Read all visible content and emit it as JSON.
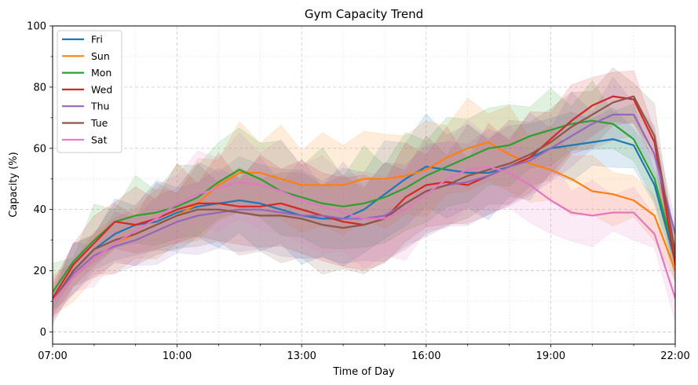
{
  "chart_data": {
    "type": "line",
    "title": "Gym Capacity Trend",
    "xlabel": "Time of Day",
    "ylabel": "Capacity (%)",
    "xlim": [
      7,
      22
    ],
    "ylim": [
      -4,
      100
    ],
    "x_ticks": [
      7,
      10,
      13,
      16,
      19,
      22
    ],
    "x_tick_labels": [
      "07:00",
      "10:00",
      "13:00",
      "16:00",
      "19:00",
      "22:00"
    ],
    "y_ticks": [
      0,
      20,
      40,
      60,
      80,
      100
    ],
    "y_tick_labels": [
      "0",
      "20",
      "40",
      "60",
      "80",
      "100"
    ],
    "grid": true,
    "legend_position": "top-left",
    "x": [
      7,
      7.5,
      8,
      8.5,
      9,
      9.5,
      10,
      10.5,
      11,
      11.5,
      12,
      12.5,
      13,
      13.5,
      14,
      14.5,
      15,
      15.5,
      16,
      16.5,
      17,
      17.5,
      18,
      18.5,
      19,
      19.5,
      20,
      20.5,
      21,
      21.5,
      22
    ],
    "series": [
      {
        "name": "Fri",
        "color": "#1f77b4",
        "values": [
          10,
          20,
          27,
          32,
          35,
          36,
          39,
          41,
          42,
          43,
          42,
          40,
          38,
          37,
          37,
          40,
          45,
          50,
          54,
          53,
          52,
          52,
          54,
          57,
          60,
          61,
          62,
          63,
          61,
          48,
          23
        ]
      },
      {
        "name": "Sun",
        "color": "#ff7f0e",
        "values": [
          10,
          18,
          24,
          29,
          32,
          35,
          38,
          42,
          48,
          52,
          52,
          50,
          48,
          48,
          48,
          50,
          50,
          51,
          53,
          57,
          60,
          62,
          58,
          55,
          53,
          50,
          46,
          45,
          43,
          38,
          20
        ]
      },
      {
        "name": "Mon",
        "color": "#2ca02c",
        "values": [
          13,
          23,
          30,
          36,
          38,
          39,
          41,
          44,
          49,
          53,
          50,
          46,
          44,
          42,
          41,
          42,
          44,
          47,
          51,
          54,
          57,
          60,
          61,
          64,
          66,
          68,
          69,
          68,
          63,
          50,
          25
        ]
      },
      {
        "name": "Wed",
        "color": "#d62728",
        "values": [
          11,
          22,
          29,
          36,
          35,
          37,
          40,
          42,
          42,
          41,
          41,
          42,
          40,
          38,
          36,
          35,
          37,
          44,
          48,
          49,
          48,
          51,
          54,
          57,
          63,
          69,
          74,
          77,
          76,
          62,
          22
        ]
      },
      {
        "name": "Thu",
        "color": "#9467bd",
        "values": [
          10,
          19,
          25,
          28,
          30,
          33,
          36,
          38,
          39,
          40,
          40,
          39,
          38,
          38,
          37,
          37,
          38,
          42,
          46,
          48,
          49,
          51,
          54,
          56,
          60,
          64,
          68,
          71,
          71,
          58,
          32
        ]
      },
      {
        "name": "Tue",
        "color": "#8c564b",
        "values": [
          10,
          20,
          27,
          30,
          32,
          35,
          38,
          40,
          40,
          39,
          38,
          38,
          37,
          35,
          34,
          35,
          37,
          42,
          46,
          48,
          51,
          53,
          55,
          58,
          62,
          67,
          71,
          75,
          77,
          64,
          26
        ]
      },
      {
        "name": "Sat",
        "color": "#e377c2",
        "values": [
          10,
          18,
          24,
          29,
          33,
          37,
          42,
          45,
          47,
          49,
          48,
          46,
          43,
          41,
          39,
          37,
          37,
          40,
          45,
          50,
          53,
          54,
          52,
          48,
          43,
          39,
          38,
          39,
          39,
          32,
          11
        ]
      }
    ]
  }
}
